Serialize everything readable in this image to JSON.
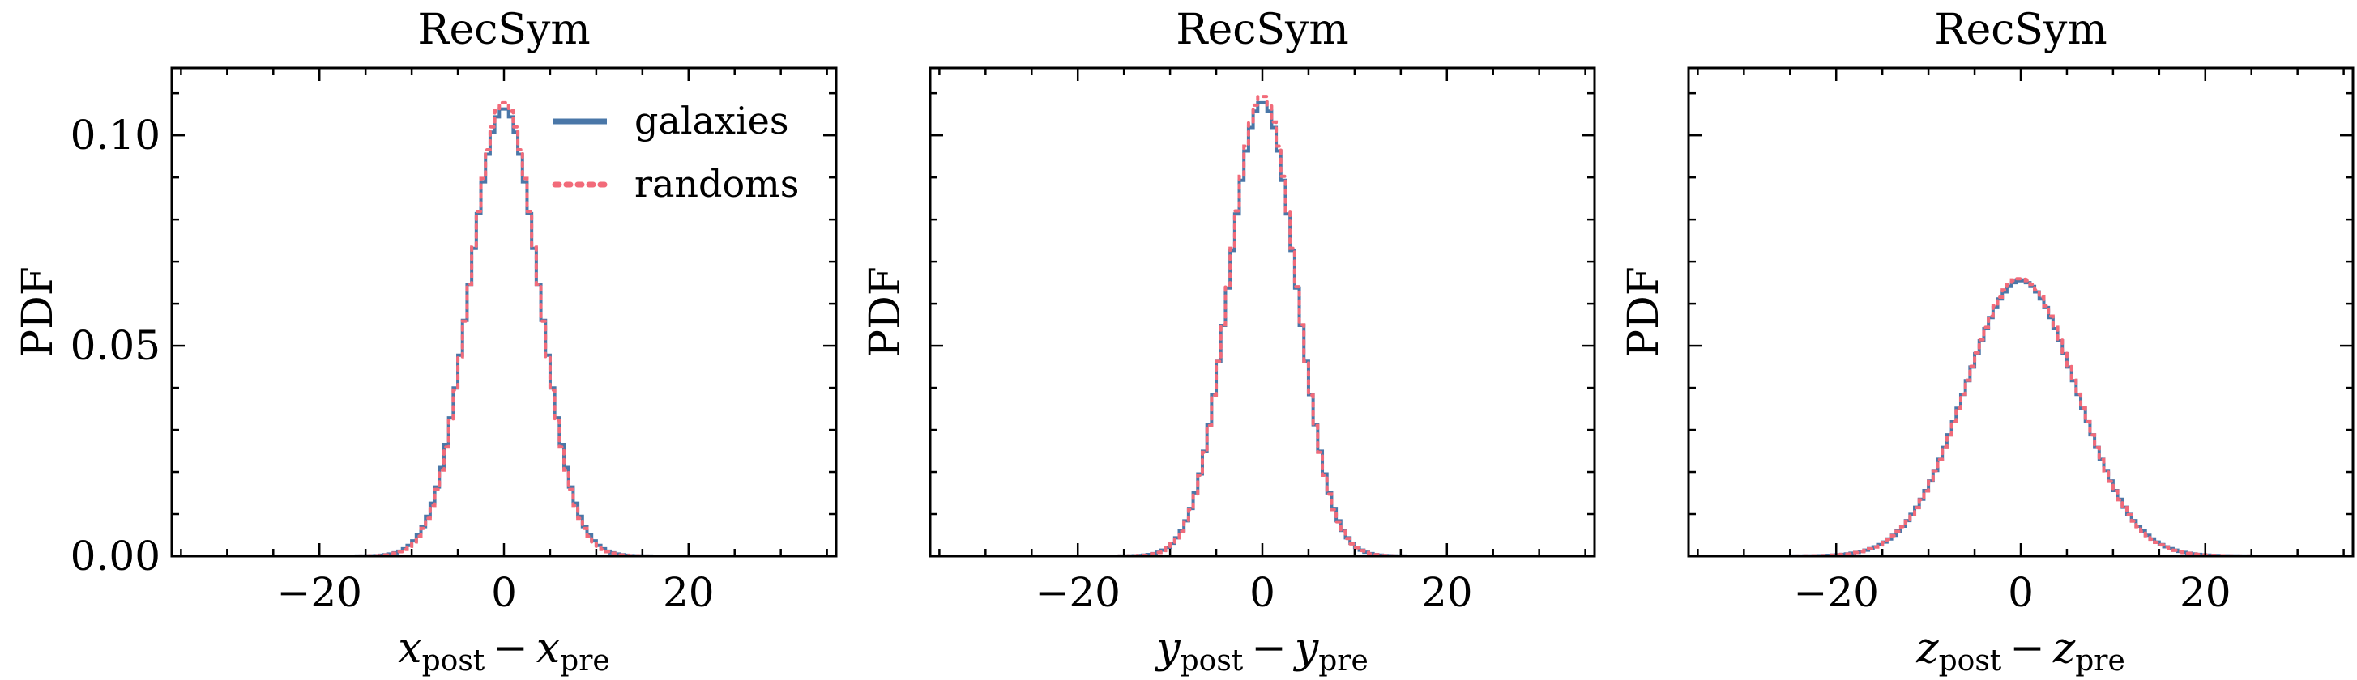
{
  "colors": {
    "galaxies": "#4a77a8",
    "randoms": "#f26b7a",
    "axes": "#000000"
  },
  "legend": {
    "placement": "top-right of first panel",
    "entries": [
      {
        "label": "galaxies",
        "style": "solid"
      },
      {
        "label": "randoms",
        "style": "dotted"
      }
    ]
  },
  "chart_data": [
    {
      "type": "line",
      "style": "step-histogram",
      "title": "RecSym",
      "ylabel": "PDF",
      "xlabel": {
        "var": "x",
        "sub1": "post",
        "sub2": "pre"
      },
      "xlim": [
        -36,
        36
      ],
      "ylim": [
        0,
        0.116
      ],
      "xticks": [
        -20,
        0,
        20
      ],
      "yticks": [
        0.0,
        0.05,
        0.1
      ],
      "ytick_labels": [
        "0.00",
        "0.05",
        "0.10"
      ],
      "show_yticklabels": true,
      "grid": false,
      "series": [
        {
          "name": "galaxies",
          "sigma": 3.75,
          "peak": 0.1065
        },
        {
          "name": "randoms",
          "sigma": 3.7,
          "peak": 0.108
        }
      ]
    },
    {
      "type": "line",
      "style": "step-histogram",
      "title": "RecSym",
      "ylabel": "PDF",
      "xlabel": {
        "var": "y",
        "sub1": "post",
        "sub2": "pre"
      },
      "xlim": [
        -36,
        36
      ],
      "ylim": [
        0,
        0.116
      ],
      "xticks": [
        -20,
        0,
        20
      ],
      "yticks": [
        0.0,
        0.05,
        0.1
      ],
      "ytick_labels": [
        "",
        "",
        ""
      ],
      "show_yticklabels": false,
      "grid": false,
      "series": [
        {
          "name": "galaxies",
          "sigma": 3.65,
          "peak": 0.108
        },
        {
          "name": "randoms",
          "sigma": 3.62,
          "peak": 0.1095
        }
      ]
    },
    {
      "type": "line",
      "style": "step-histogram",
      "title": "RecSym",
      "ylabel": "PDF",
      "xlabel": {
        "var": "z",
        "sub1": "post",
        "sub2": "pre"
      },
      "xlim": [
        -36,
        36
      ],
      "ylim": [
        0,
        0.116
      ],
      "xticks": [
        -20,
        0,
        20
      ],
      "yticks": [
        0.0,
        0.05,
        0.1
      ],
      "ytick_labels": [
        "",
        "",
        ""
      ],
      "show_yticklabels": false,
      "grid": false,
      "series": [
        {
          "name": "galaxies",
          "sigma": 6.05,
          "peak": 0.0655
        },
        {
          "name": "randoms",
          "sigma": 6.02,
          "peak": 0.066
        }
      ]
    }
  ]
}
